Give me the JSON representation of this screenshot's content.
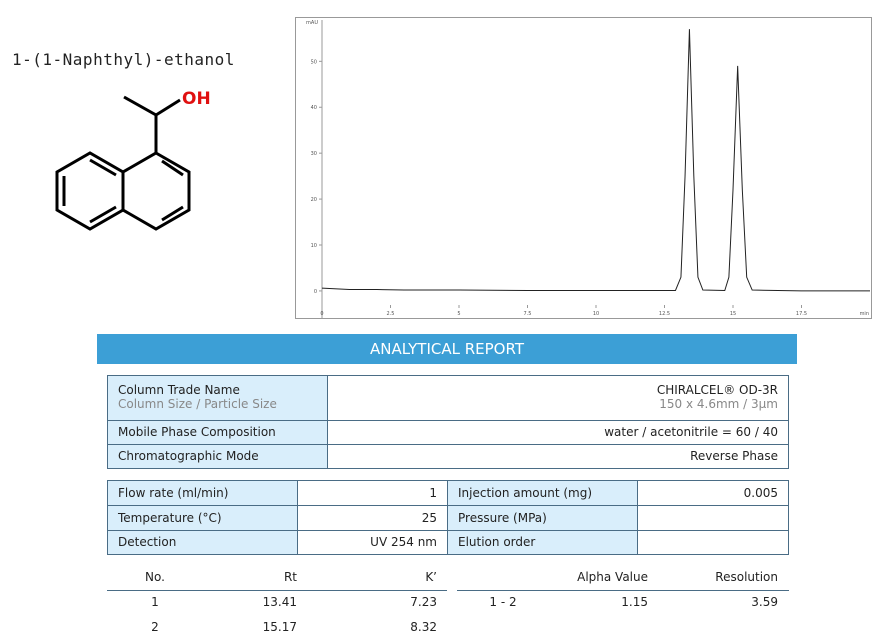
{
  "compound": {
    "name": "1-(1-Naphthyl)-ethanol",
    "group_label": "OH"
  },
  "chromatogram": {
    "type": "line",
    "y_label": "mAU",
    "x_label": "min",
    "color": "#222222",
    "x": [
      0,
      1,
      2,
      3,
      5,
      7.5,
      10,
      12.9,
      13.1,
      13.25,
      13.41,
      13.57,
      13.72,
      13.9,
      14.7,
      14.85,
      15.0,
      15.17,
      15.34,
      15.5,
      15.7,
      17.5,
      20
    ],
    "values": [
      0.6,
      0.3,
      0.3,
      0.2,
      0.2,
      0.1,
      0.1,
      0.1,
      3,
      25,
      57,
      25,
      3,
      0.2,
      0.1,
      3,
      22,
      49,
      22,
      3,
      0.2,
      0,
      0
    ],
    "xlim": [
      0,
      20
    ],
    "ylim": [
      -3.5,
      59
    ],
    "xticks": [
      0,
      2.5,
      5,
      7.5,
      10,
      12.5,
      15,
      17.5
    ],
    "yticks": [
      0,
      10,
      20,
      30,
      40,
      50
    ]
  },
  "report": {
    "title": "ANALYTICAL REPORT",
    "column": {
      "trade_name_label": "Column Trade Name",
      "size_label": "Column Size / Particle Size",
      "trade_name": "CHIRALCEL® OD-3R",
      "size": "150 x 4.6mm / 3µm",
      "mobile_phase_label": "Mobile Phase Composition",
      "mobile_phase": "water / acetonitrile = 60 / 40",
      "mode_label": "Chromatographic Mode",
      "mode": "Reverse Phase"
    },
    "conditions": {
      "flow_rate_label": "Flow rate (ml/min)",
      "flow_rate": 1,
      "injection_label": "Injection amount (mg)",
      "injection": 0.005,
      "temperature_label": "Temperature (°C)",
      "temperature": 25,
      "pressure_label": "Pressure (MPa)",
      "detection_label": "Detection",
      "detection": "UV 254 nm",
      "elution_label": "Elution order"
    },
    "peaks": {
      "headers": [
        "No.",
        "Rt",
        "K’"
      ],
      "rows": [
        [
          1,
          13.41,
          7.23
        ],
        [
          2,
          15.17,
          8.32
        ]
      ]
    },
    "separation": {
      "headers": [
        "Alpha Value",
        "Resolution"
      ],
      "rows": [
        [
          "1 - 2",
          1.15,
          3.59
        ]
      ]
    }
  }
}
